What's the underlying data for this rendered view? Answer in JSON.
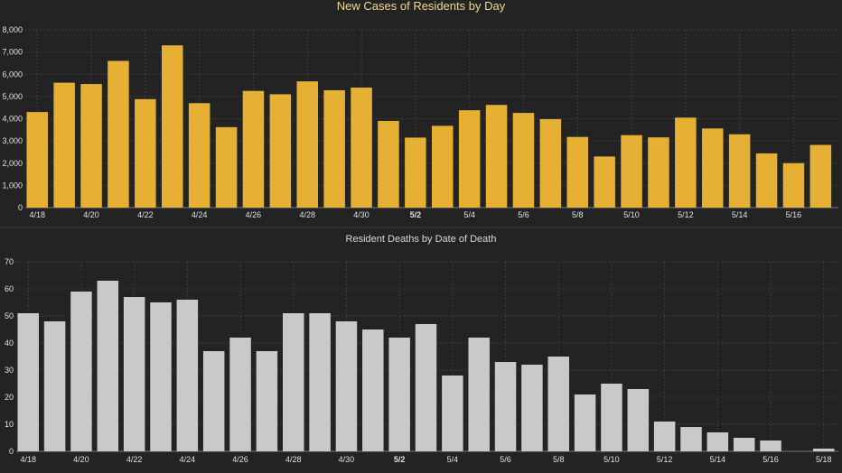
{
  "chart_data": [
    {
      "type": "bar",
      "title": "New Cases of Residents by Day",
      "xlabel": "",
      "ylabel": "",
      "ylim": [
        0,
        8000
      ],
      "yticks": [
        "0",
        "1,000",
        "2,000",
        "3,000",
        "4,000",
        "5,000",
        "6,000",
        "7,000",
        "8,000"
      ],
      "grid": true,
      "bar_color": "#e6b035",
      "categories": [
        "4/18",
        "4/19",
        "4/20",
        "4/21",
        "4/22",
        "4/23",
        "4/24",
        "4/25",
        "4/26",
        "4/27",
        "4/28",
        "4/29",
        "4/30",
        "5/1",
        "5/2",
        "5/3",
        "5/4",
        "5/5",
        "5/6",
        "5/7",
        "5/8",
        "5/9",
        "5/10",
        "5/11",
        "5/12",
        "5/13",
        "5/14",
        "5/15",
        "5/16",
        "5/17"
      ],
      "values": [
        4300,
        5620,
        5560,
        6600,
        4880,
        7300,
        4700,
        3620,
        5250,
        5100,
        5680,
        5280,
        5400,
        3900,
        3150,
        3680,
        4380,
        4620,
        4260,
        3980,
        3180,
        2300,
        3260,
        3160,
        4050,
        3560,
        3300,
        2440,
        2000,
        2820
      ],
      "tick_labels": [
        "4/18",
        "4/20",
        "4/22",
        "4/24",
        "4/26",
        "4/28",
        "4/30",
        "5/2",
        "5/4",
        "5/6",
        "5/8",
        "5/10",
        "5/12",
        "5/14",
        "5/16"
      ],
      "bold_ticks": [
        "5/2"
      ]
    },
    {
      "type": "bar",
      "title": "Resident Deaths by Date of Death",
      "xlabel": "",
      "ylabel": "",
      "ylim": [
        0,
        70
      ],
      "yticks": [
        "0",
        "10",
        "20",
        "30",
        "40",
        "50",
        "60",
        "70"
      ],
      "grid": true,
      "bar_color": "#c9c9c9",
      "categories": [
        "4/18",
        "4/19",
        "4/20",
        "4/21",
        "4/22",
        "4/23",
        "4/24",
        "4/25",
        "4/26",
        "4/27",
        "4/28",
        "4/29",
        "4/30",
        "5/1",
        "5/2",
        "5/3",
        "5/4",
        "5/5",
        "5/6",
        "5/7",
        "5/8",
        "5/9",
        "5/10",
        "5/11",
        "5/12",
        "5/13",
        "5/14",
        "5/15",
        "5/16",
        "5/17",
        "5/18"
      ],
      "values": [
        51,
        48,
        59,
        63,
        57,
        55,
        56,
        37,
        42,
        37,
        51,
        51,
        48,
        45,
        42,
        47,
        28,
        42,
        33,
        32,
        35,
        21,
        25,
        23,
        11,
        9,
        7,
        5,
        4,
        0,
        1
      ],
      "tick_labels": [
        "4/18",
        "4/20",
        "4/22",
        "4/24",
        "4/26",
        "4/28",
        "4/30",
        "5/2",
        "5/4",
        "5/6",
        "5/8",
        "5/10",
        "5/12",
        "5/14",
        "5/16",
        "5/18"
      ],
      "bold_ticks": [
        "5/2"
      ]
    }
  ]
}
